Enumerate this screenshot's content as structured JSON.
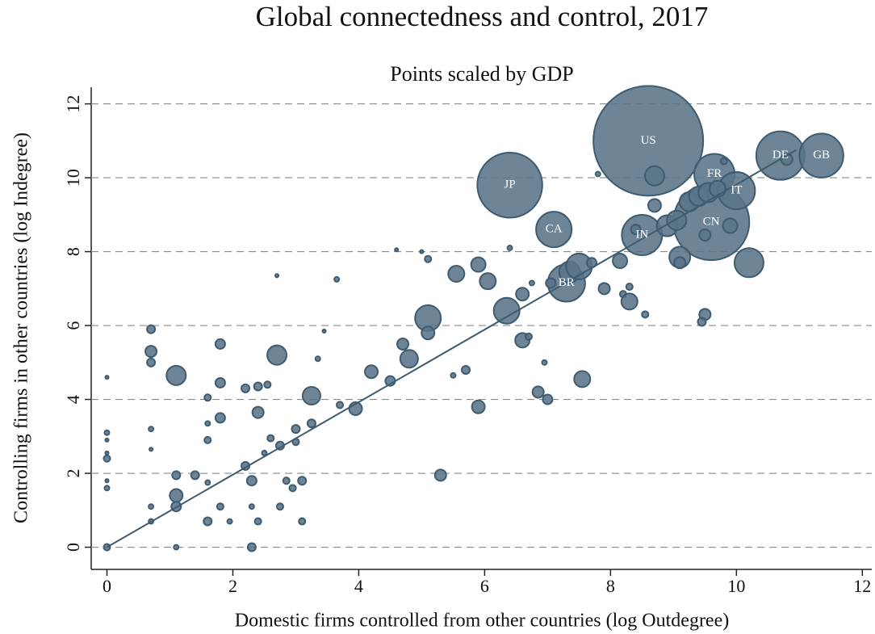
{
  "chart_data": {
    "type": "bubble",
    "title": "Global connectedness and control, 2017",
    "subtitle": "Points scaled by GDP",
    "x_label": "Domestic firms controlled from other countries (log Outdegree)",
    "y_label": "Controlling firms in other countries (log Indegree)",
    "xlim": [
      -0.25,
      12.15
    ],
    "ylim": [
      -0.6,
      12.45
    ],
    "xticks": [
      0,
      2,
      4,
      6,
      8,
      10,
      12
    ],
    "yticks": [
      0,
      2,
      4,
      6,
      8,
      10,
      12
    ],
    "grid": true,
    "color": "#5a7489",
    "series": [
      {
        "labels": [
          "US",
          "CN",
          "JP",
          "DE",
          "GB",
          "IN",
          "FR",
          "BR",
          "IT",
          "CA"
        ],
        "x": [
          8.6,
          9.6,
          6.4,
          10.7,
          11.35,
          8.5,
          9.65,
          7.3,
          10.0,
          7.1
        ],
        "y": [
          11.0,
          8.8,
          9.8,
          10.6,
          10.6,
          8.45,
          10.1,
          7.15,
          9.65,
          8.6
        ],
        "size": [
          100,
          48,
          35,
          19.5,
          16,
          13.5,
          13.5,
          11.5,
          11.5,
          10.5
        ]
      },
      {
        "x": [
          0,
          0,
          0,
          0,
          0,
          0,
          0,
          0,
          0.7,
          0.7,
          0.7,
          0.7,
          0.7,
          0.7,
          0.7,
          1.1,
          1.1,
          1.1,
          1.1,
          1.1,
          1.4,
          1.6,
          1.6,
          1.6,
          1.6,
          1.6,
          1.8,
          1.8,
          1.8,
          1.8,
          1.95,
          2.2,
          2.2,
          2.3,
          2.3,
          2.3,
          2.4,
          2.4,
          2.4,
          2.5,
          2.55,
          2.6,
          2.7,
          2.7,
          2.75,
          2.75,
          2.85,
          2.95,
          3.0,
          3.0,
          3.1,
          3.1,
          3.25,
          3.25,
          3.35,
          3.45,
          3.65,
          3.7,
          3.95,
          4.2,
          4.5,
          4.6,
          4.7,
          4.8,
          5.0,
          5.1,
          5.1,
          5.1,
          5.3,
          5.5,
          5.55,
          5.7,
          5.9,
          5.9,
          6.05,
          6.35,
          6.4,
          6.6,
          6.6,
          6.7,
          6.75,
          6.85,
          6.95,
          7.0,
          7.05,
          7.35,
          7.5,
          7.55,
          7.7,
          7.8,
          7.9,
          8.15,
          8.2,
          8.3,
          8.3,
          8.4,
          8.55,
          8.7,
          8.7,
          8.9,
          9.05,
          9.1,
          9.1,
          9.25,
          9.4,
          9.55,
          9.5,
          9.5,
          9.45,
          9.8,
          9.9,
          10.2,
          10.8,
          9.7
        ],
        "y": [
          0,
          2.4,
          2.9,
          3.1,
          1.6,
          1.8,
          4.6,
          2.55,
          5.9,
          5.3,
          5.0,
          3.2,
          1.1,
          0.7,
          2.65,
          4.65,
          1.4,
          1.1,
          1.95,
          0,
          1.95,
          4.05,
          3.35,
          2.9,
          1.75,
          0.7,
          5.5,
          4.45,
          3.5,
          1.1,
          0.7,
          4.3,
          2.2,
          1.8,
          1.1,
          0,
          4.35,
          3.65,
          0.7,
          2.55,
          4.4,
          2.95,
          5.2,
          7.35,
          2.75,
          1.1,
          1.8,
          1.6,
          2.85,
          3.2,
          1.8,
          0.7,
          4.1,
          3.35,
          5.1,
          5.85,
          7.25,
          3.85,
          3.75,
          4.75,
          4.5,
          8.05,
          5.5,
          5.1,
          8.0,
          6.2,
          5.8,
          7.8,
          1.95,
          4.65,
          7.4,
          4.8,
          7.65,
          3.8,
          7.2,
          6.4,
          8.1,
          5.6,
          6.85,
          5.7,
          7.15,
          4.2,
          5.0,
          4.0,
          7.15,
          7.45,
          7.6,
          4.55,
          7.7,
          10.1,
          7.0,
          7.75,
          6.85,
          7.05,
          6.65,
          8.6,
          6.3,
          10.05,
          9.25,
          8.7,
          8.85,
          7.85,
          7.7,
          9.35,
          9.5,
          9.6,
          8.45,
          6.3,
          6.1,
          10.45,
          8.7,
          7.7,
          10.5,
          9.7
        ],
        "size": [
          0.35,
          0.35,
          0.09,
          0.19,
          0.19,
          0.09,
          0.09,
          0.09,
          0.54,
          1.06,
          0.54,
          0.19,
          0.19,
          0.19,
          0.09,
          3.11,
          1.38,
          0.78,
          0.54,
          0.19,
          0.54,
          0.35,
          0.19,
          0.35,
          0.19,
          0.54,
          0.78,
          0.78,
          0.78,
          0.35,
          0.19,
          0.54,
          0.54,
          0.78,
          0.19,
          0.54,
          0.54,
          1.06,
          0.35,
          0.19,
          0.35,
          0.35,
          3.11,
          0.09,
          0.54,
          0.35,
          0.35,
          0.35,
          0.35,
          0.54,
          0.54,
          0.35,
          2.62,
          0.54,
          0.19,
          0.09,
          0.19,
          0.35,
          1.38,
          1.38,
          0.78,
          0.09,
          1.06,
          2.62,
          0.09,
          5.54,
          1.38,
          0.35,
          1.06,
          0.19,
          2.16,
          0.54,
          1.75,
          1.38,
          2.16,
          5.54,
          0.19,
          1.75,
          1.38,
          0.35,
          0.19,
          1.06,
          0.19,
          0.78,
          0.78,
          3.65,
          5.54,
          2.16,
          0.78,
          0.19,
          1.06,
          1.75,
          0.35,
          0.35,
          2.16,
          0.78,
          0.35,
          3.11,
          1.38,
          3.65,
          3.11,
          3.65,
          1.06,
          3.11,
          3.11,
          3.11,
          1.06,
          1.06,
          0.54,
          0.35,
          1.75,
          7.0,
          1.06,
          2.16
        ]
      }
    ],
    "fit_line": {
      "x": [
        0,
        10.95
      ],
      "y": [
        0,
        10.75
      ],
      "color": "#3f5b70"
    }
  }
}
